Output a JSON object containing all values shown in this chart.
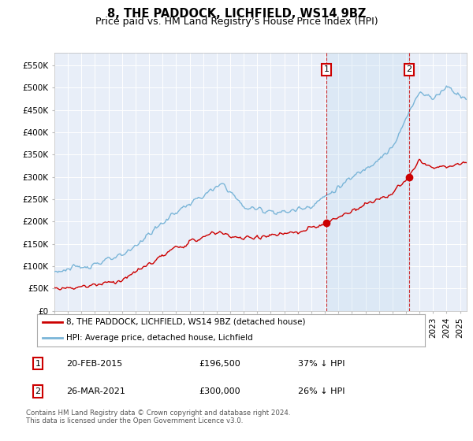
{
  "title": "8, THE PADDOCK, LICHFIELD, WS14 9BZ",
  "subtitle": "Price paid vs. HM Land Registry’s House Price Index (HPI)",
  "ylabel_ticks": [
    0,
    50000,
    100000,
    150000,
    200000,
    250000,
    300000,
    350000,
    400000,
    450000,
    500000,
    550000
  ],
  "ylabel_labels": [
    "£0",
    "£50K",
    "£100K",
    "£150K",
    "£200K",
    "£250K",
    "£300K",
    "£350K",
    "£400K",
    "£450K",
    "£500K",
    "£550K"
  ],
  "ylim": [
    0,
    578000
  ],
  "xlim_start": 1995.0,
  "xlim_end": 2025.5,
  "hpi_color": "#7ab5d8",
  "hpi_fill_color": "#d6e9f8",
  "property_color": "#cc0000",
  "plot_bg_color": "#e8eef8",
  "grid_color": "#ffffff",
  "sale1_year": 2015.13,
  "sale1_price": 196500,
  "sale1_label": "20-FEB-2015",
  "sale1_price_str": "£196,500",
  "sale1_pct": "37% ↓ HPI",
  "sale2_year": 2021.23,
  "sale2_price": 300000,
  "sale2_label": "26-MAR-2021",
  "sale2_price_str": "£300,000",
  "sale2_pct": "26% ↓ HPI",
  "legend1_label": "8, THE PADDOCK, LICHFIELD, WS14 9BZ (detached house)",
  "legend2_label": "HPI: Average price, detached house, Lichfield",
  "footer": "Contains HM Land Registry data © Crown copyright and database right 2024.\nThis data is licensed under the Open Government Licence v3.0.",
  "title_fontsize": 10.5,
  "subtitle_fontsize": 9,
  "tick_fontsize": 7.5
}
